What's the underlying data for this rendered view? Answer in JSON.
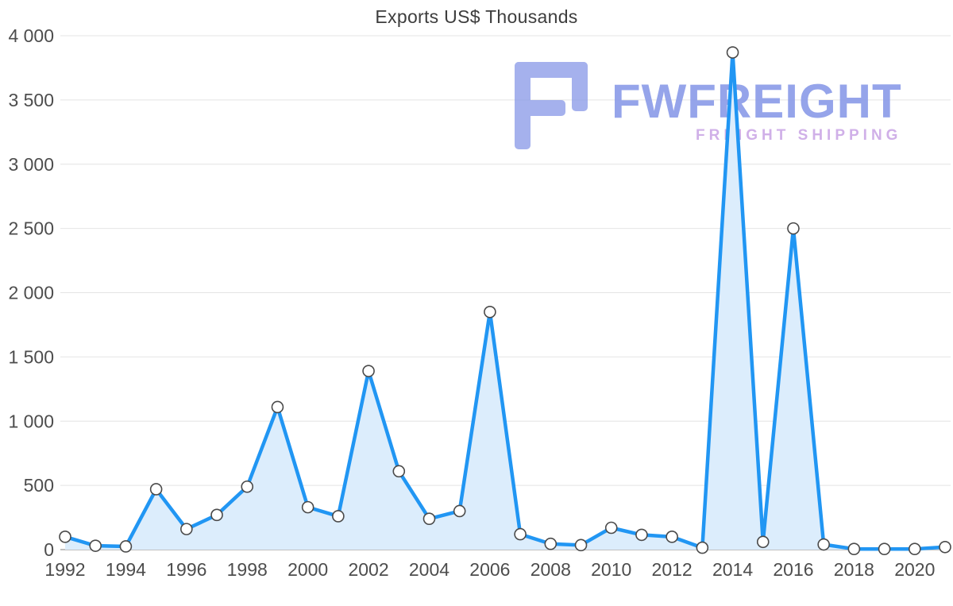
{
  "chart_data": {
    "type": "area",
    "title": "Exports US$ Thousands",
    "x": [
      1992,
      1993,
      1994,
      1995,
      1996,
      1997,
      1998,
      1999,
      2000,
      2001,
      2002,
      2003,
      2004,
      2005,
      2006,
      2007,
      2008,
      2009,
      2010,
      2011,
      2012,
      2013,
      2014,
      2015,
      2016,
      2017,
      2018,
      2019,
      2020,
      2021
    ],
    "values": [
      100,
      30,
      25,
      470,
      160,
      270,
      490,
      1110,
      330,
      260,
      1390,
      610,
      240,
      300,
      1850,
      120,
      45,
      35,
      170,
      115,
      100,
      15,
      3870,
      60,
      2500,
      40,
      5,
      5,
      5,
      20
    ],
    "xlabel": "",
    "ylabel": "",
    "ylim": [
      0,
      4000
    ],
    "grid": "horizontal",
    "legend_position": "none",
    "yticks": [
      {
        "value": 0,
        "label": "0"
      },
      {
        "value": 500,
        "label": "500"
      },
      {
        "value": 1000,
        "label": "1 000"
      },
      {
        "value": 1500,
        "label": "1 500"
      },
      {
        "value": 2000,
        "label": "2 000"
      },
      {
        "value": 2500,
        "label": "2 500"
      },
      {
        "value": 3000,
        "label": "3 000"
      },
      {
        "value": 3500,
        "label": "3 500"
      },
      {
        "value": 4000,
        "label": "4 000"
      }
    ],
    "xticks": [
      {
        "year": 1992,
        "label": "1992"
      },
      {
        "year": 1994,
        "label": "1994"
      },
      {
        "year": 1996,
        "label": "1996"
      },
      {
        "year": 1998,
        "label": "1998"
      },
      {
        "year": 2000,
        "label": "2000"
      },
      {
        "year": 2002,
        "label": "2002"
      },
      {
        "year": 2004,
        "label": "2004"
      },
      {
        "year": 2006,
        "label": "2006"
      },
      {
        "year": 2008,
        "label": "2008"
      },
      {
        "year": 2010,
        "label": "2010"
      },
      {
        "year": 2012,
        "label": "2012"
      },
      {
        "year": 2014,
        "label": "2014"
      },
      {
        "year": 2016,
        "label": "2016"
      },
      {
        "year": 2018,
        "label": "2018"
      },
      {
        "year": 2020,
        "label": "2020"
      }
    ],
    "colors": {
      "line": "#2196F3",
      "fill": "#DCEDFC",
      "marker_fill": "#FFFFFF",
      "marker_stroke": "#4A4A4A",
      "grid": "#E4E4E4",
      "axis": "#ABABAB",
      "tick_text": "#4D4D4D",
      "title_text": "#3D3D3D"
    }
  },
  "watermark": {
    "brand": "FWFREIGHT",
    "tagline": "FREIGHT SHIPPING",
    "brand_color": "#8A9BE8",
    "tagline_color": "#CBA8E6",
    "logo_icon": "fwfreight-logo-icon"
  }
}
